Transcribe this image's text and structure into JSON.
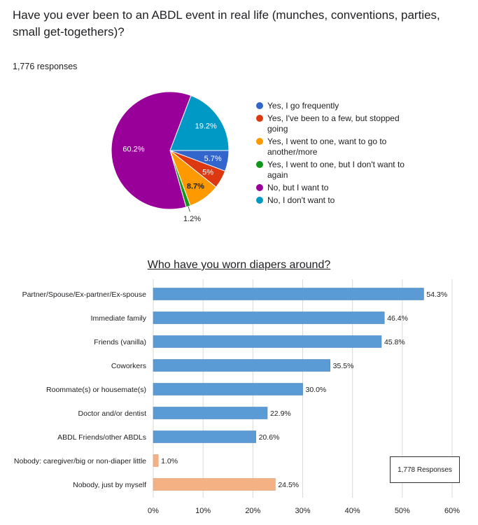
{
  "question": "Have you ever been to an ABDL event in real life (munches, conventions, parties, small  get-togethers)?",
  "responses_label": "1,776 responses",
  "chart_data": [
    {
      "type": "pie",
      "title": "Have you ever been to an ABDL event in real life (munches, conventions, parties, small  get-togethers)?",
      "slices": [
        {
          "label": "Yes, I go frequently",
          "value": 5.7,
          "display": "5.7%",
          "color": "#3366cc"
        },
        {
          "label": "Yes, I've been to a few, but stopped going",
          "value": 5.0,
          "display": "5%",
          "color": "#dc3912"
        },
        {
          "label": "Yes, I went to one, want to go to another/more",
          "value": 8.7,
          "display": "8.7%",
          "color": "#ff9900"
        },
        {
          "label": "Yes, I went to one, but I don't want to again",
          "value": 1.2,
          "display": "1.2%",
          "color": "#109618"
        },
        {
          "label": "No, but I want to",
          "value": 60.2,
          "display": "60.2%",
          "color": "#990099"
        },
        {
          "label": "No, I don't want to",
          "value": 19.2,
          "display": "19.2%",
          "color": "#0099c6"
        }
      ]
    },
    {
      "type": "bar",
      "orientation": "horizontal",
      "title": "Who have you worn diapers around?",
      "categories": [
        "Partner/Spouse/Ex-partner/Ex-spouse",
        "Immediate family",
        "Friends (vanilla)",
        "Coworkers",
        "Roommate(s) or housemate(s)",
        "Doctor and/or dentist",
        "ABDL Friends/other ABDLs",
        "Nobody: caregiver/big or non-diaper little",
        "Nobody, just by myself"
      ],
      "values": [
        54.3,
        46.4,
        45.8,
        35.5,
        30.0,
        22.9,
        20.6,
        1.0,
        24.5
      ],
      "value_labels": [
        "54.3%",
        "46.4%",
        "45.8%",
        "35.5%",
        "30.0%",
        "22.9%",
        "20.6%",
        "1.0%",
        "24.5%"
      ],
      "bar_colors": [
        "#5b9bd5",
        "#5b9bd5",
        "#5b9bd5",
        "#5b9bd5",
        "#5b9bd5",
        "#5b9bd5",
        "#5b9bd5",
        "#f4b183",
        "#f4b183"
      ],
      "xlim": [
        0,
        60
      ],
      "x_ticks": [
        "0%",
        "10%",
        "20%",
        "30%",
        "40%",
        "50%",
        "60%"
      ],
      "grid": true,
      "responses_note": "1,778 Responses"
    }
  ]
}
